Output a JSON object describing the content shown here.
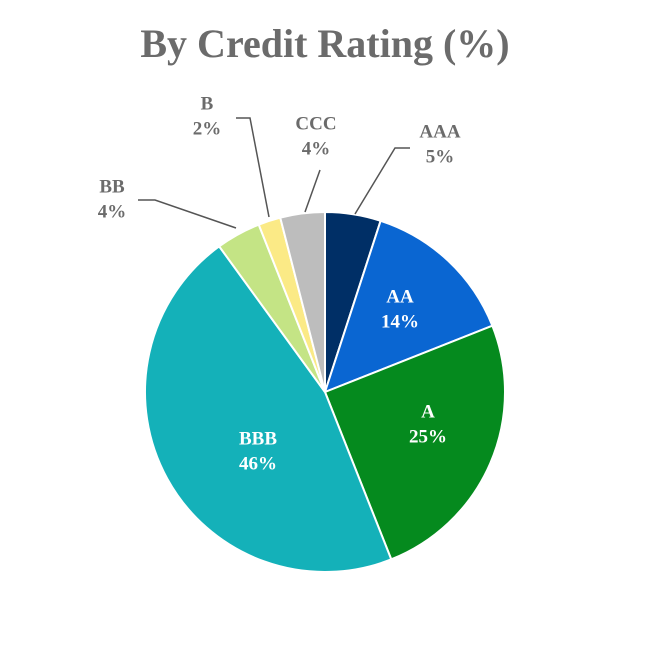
{
  "chart_data": {
    "type": "pie",
    "title": "By Credit Rating (%)",
    "categories": [
      "AAA",
      "AA",
      "A",
      "BBB",
      "BB",
      "B",
      "CCC"
    ],
    "values": [
      5,
      14,
      25,
      46,
      4,
      2,
      4
    ],
    "value_labels": [
      "5%",
      "14%",
      "25%",
      "46%",
      "4%",
      "2%",
      "4%"
    ],
    "colors": [
      "#002f66",
      "#0a66d2",
      "#058a1e",
      "#14b1b9",
      "#c4e485",
      "#fbea86",
      "#bdbdbd"
    ]
  }
}
